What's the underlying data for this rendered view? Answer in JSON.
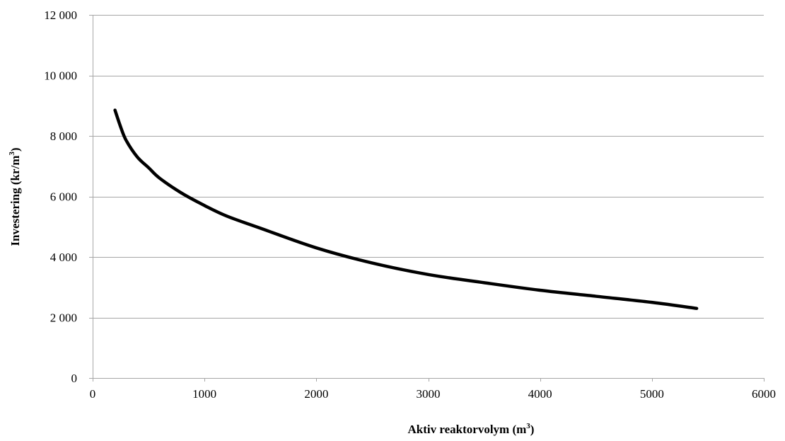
{
  "chart_data": {
    "type": "line",
    "title": "",
    "xlabel": {
      "text": "Aktiv reaktorvolym (m",
      "sup": "3",
      "suffix": ")"
    },
    "ylabel": {
      "text": "Investering (kr/m",
      "sup": "3",
      "suffix": ")"
    },
    "xlim": [
      0,
      6000
    ],
    "ylim": [
      0,
      12000
    ],
    "x_ticks": [
      0,
      1000,
      2000,
      3000,
      4000,
      5000,
      6000
    ],
    "x_tick_labels": [
      "0",
      "1000",
      "2000",
      "3000",
      "4000",
      "5000",
      "6000"
    ],
    "y_ticks": [
      0,
      2000,
      4000,
      6000,
      8000,
      10000,
      12000
    ],
    "y_tick_labels": [
      "0",
      "2 000",
      "4 000",
      "6 000",
      "8 000",
      "10 000",
      "12 000"
    ],
    "grid": "horizontal",
    "legend": "none",
    "colors": {
      "line": "#000000",
      "grid": "#a6a6a6",
      "axis": "#a6a6a6"
    },
    "series": [
      {
        "x": [
          200,
          250,
          300,
          400,
          500,
          600,
          800,
          1000,
          1200,
          1500,
          2000,
          2500,
          3000,
          3500,
          4000,
          4500,
          5000,
          5400
        ],
        "values": [
          8850,
          8300,
          7850,
          7300,
          6950,
          6600,
          6100,
          5700,
          5350,
          4950,
          4300,
          3800,
          3420,
          3150,
          2900,
          2700,
          2500,
          2300
        ]
      }
    ]
  }
}
